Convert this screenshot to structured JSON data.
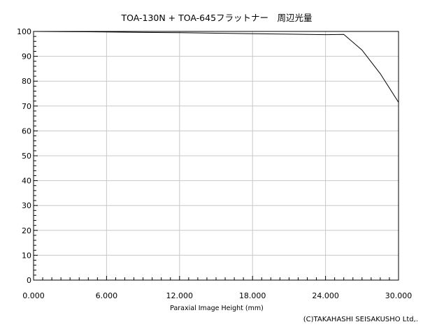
{
  "chart_data": {
    "type": "line",
    "title": "TOA-130N + TOA-645フラットナー　周辺光量",
    "xlabel": "Paraxial Image Height (mm)",
    "ylabel": "",
    "xlim": [
      0,
      30
    ],
    "ylim": [
      0,
      100
    ],
    "x_ticks": [
      0,
      6,
      12,
      18,
      24,
      30
    ],
    "x_tick_labels": [
      "0.000",
      "6.000",
      "12.000",
      "18.000",
      "24.000",
      "30.000"
    ],
    "y_ticks": [
      0,
      10,
      20,
      30,
      40,
      50,
      60,
      70,
      80,
      90,
      100
    ],
    "y_tick_labels": [
      "0",
      "10",
      "20",
      "30",
      "40",
      "50",
      "60",
      "70",
      "80",
      "90",
      "100"
    ],
    "x_minor_step": 0.75,
    "y_minor_step": 2,
    "grid": true,
    "series": [
      {
        "x": [
          0,
          3,
          6,
          9,
          12,
          15,
          18,
          21,
          24,
          25.5,
          27,
          28.5,
          30
        ],
        "values": [
          100,
          99.9,
          99.8,
          99.6,
          99.5,
          99.3,
          99.1,
          98.9,
          98.7,
          98.8,
          92.5,
          83,
          71.5
        ]
      }
    ],
    "annotations": [
      "(C)TAKAHASHI SEISAKUSHO Ltd,."
    ]
  }
}
